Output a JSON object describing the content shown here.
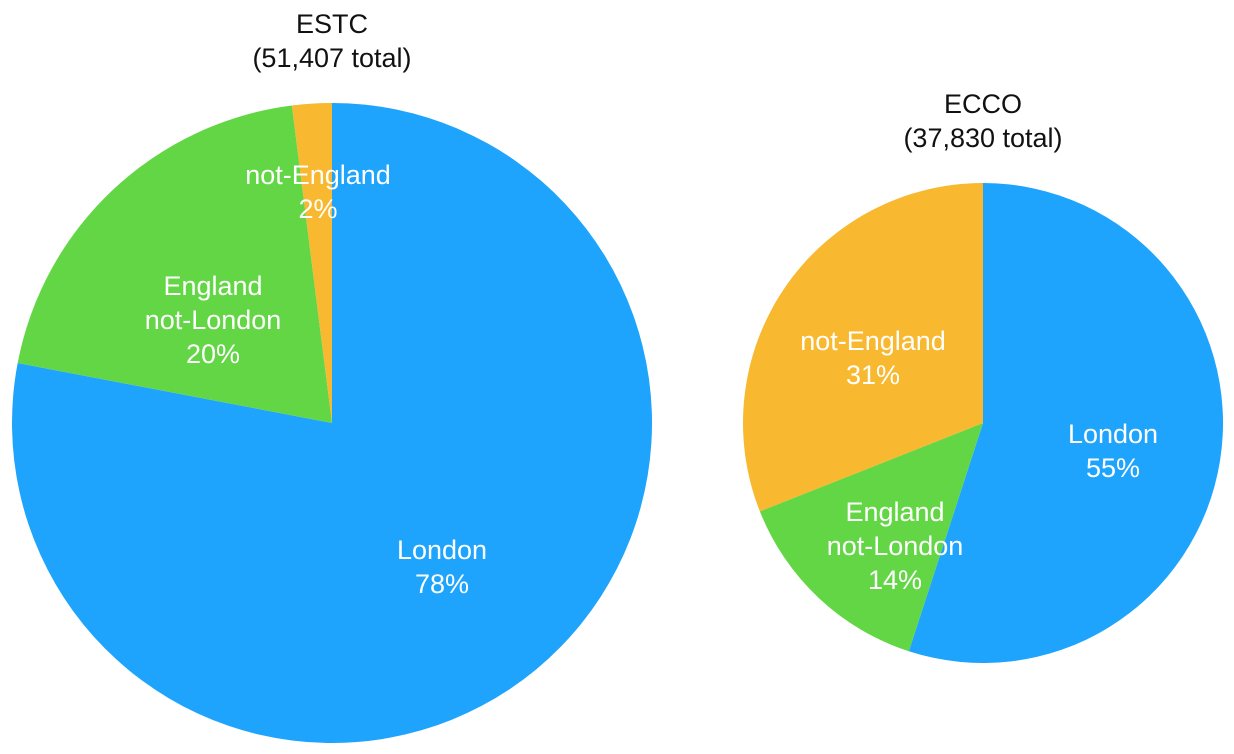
{
  "chart_data": [
    {
      "type": "pie",
      "title": "ESTC",
      "subtitle": "(51,407 total)",
      "slices": [
        {
          "key": "london",
          "label_lines": [
            "London"
          ],
          "percent_label": "78%",
          "value": 78,
          "color": "#1EA4FC"
        },
        {
          "key": "england",
          "label_lines": [
            "England",
            "not-London"
          ],
          "percent_label": "20%",
          "value": 20,
          "color": "#63D646"
        },
        {
          "key": "notengland",
          "label_lines": [
            "not-England"
          ],
          "percent_label": "2%",
          "value": 2,
          "color": "#F8B82F"
        }
      ]
    },
    {
      "type": "pie",
      "title": "ECCO",
      "subtitle": "(37,830 total)",
      "slices": [
        {
          "key": "london",
          "label_lines": [
            "London"
          ],
          "percent_label": "55%",
          "value": 55,
          "color": "#1EA4FC"
        },
        {
          "key": "england",
          "label_lines": [
            "England",
            "not-London"
          ],
          "percent_label": "14%",
          "value": 14,
          "color": "#63D646"
        },
        {
          "key": "notengland",
          "label_lines": [
            "not-England"
          ],
          "percent_label": "31%",
          "value": 31,
          "color": "#F8B82F"
        }
      ]
    }
  ]
}
